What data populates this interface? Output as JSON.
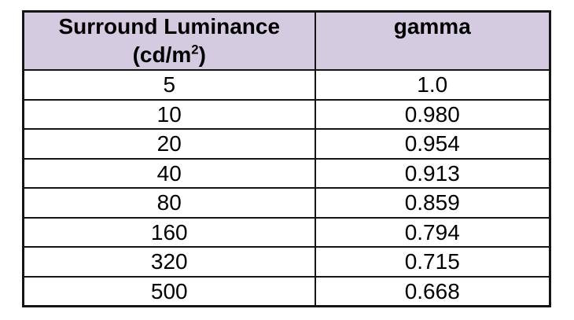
{
  "colors": {
    "header_bg": "#d4cbe1",
    "border": "#151515",
    "text": "#000000",
    "page_bg": "#ffffff"
  },
  "table": {
    "header": {
      "luminance_line1": "Surround Luminance",
      "luminance_unit_pre": "(cd/m",
      "luminance_unit_sup": "2",
      "luminance_unit_post": ")",
      "gamma": "gamma"
    },
    "rows": [
      {
        "luminance": "5",
        "gamma": "1.0"
      },
      {
        "luminance": "10",
        "gamma": "0.980"
      },
      {
        "luminance": "20",
        "gamma": "0.954"
      },
      {
        "luminance": "40",
        "gamma": "0.913"
      },
      {
        "luminance": "80",
        "gamma": "0.859"
      },
      {
        "luminance": "160",
        "gamma": "0.794"
      },
      {
        "luminance": "320",
        "gamma": "0.715"
      },
      {
        "luminance": "500",
        "gamma": "0.668"
      }
    ]
  },
  "chart_data": {
    "type": "table",
    "columns": [
      "Surround Luminance (cd/m^2)",
      "gamma"
    ],
    "rows": [
      [
        5,
        1.0
      ],
      [
        10,
        0.98
      ],
      [
        20,
        0.954
      ],
      [
        40,
        0.913
      ],
      [
        80,
        0.859
      ],
      [
        160,
        0.794
      ],
      [
        320,
        0.715
      ],
      [
        500,
        0.668
      ]
    ],
    "grid": true,
    "header_fill": "#d4cbe1"
  }
}
